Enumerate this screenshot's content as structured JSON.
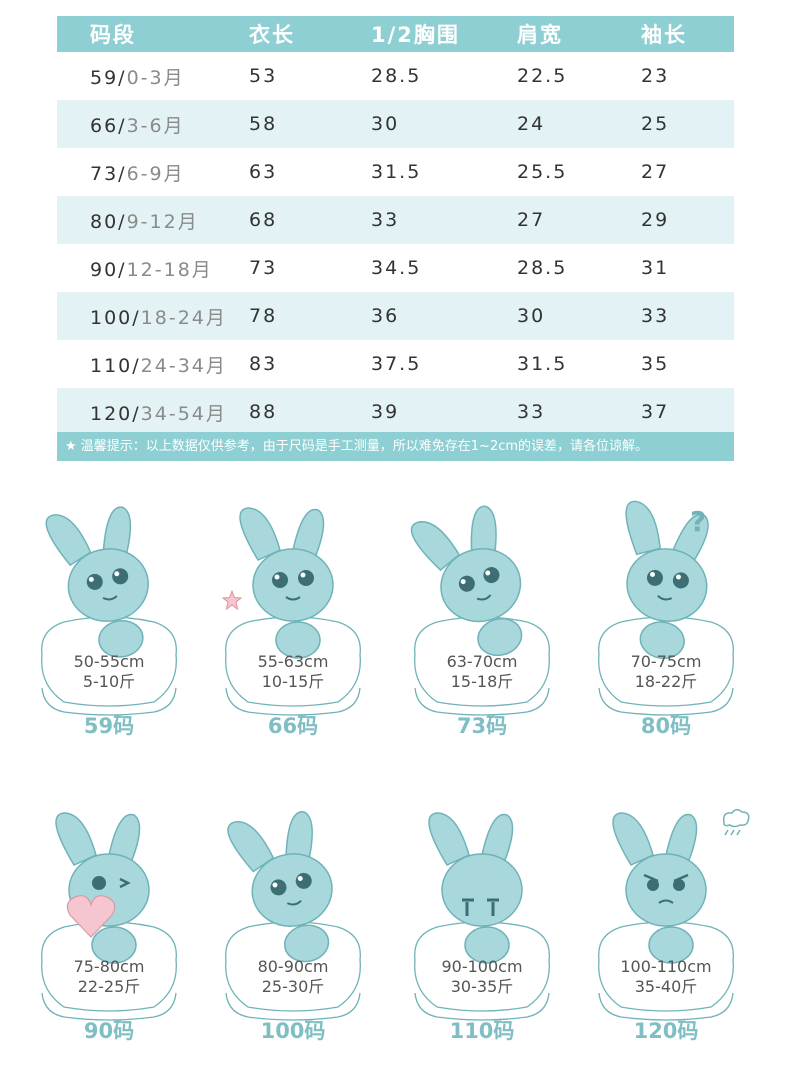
{
  "table": {
    "headers": [
      "码段",
      "衣长",
      "1/2胸围",
      "肩宽",
      "袖长"
    ],
    "rows": [
      {
        "size": "59/",
        "age": "0-3月",
        "length": "53",
        "chest": "28.5",
        "shoulder": "22.5",
        "sleeve": "23"
      },
      {
        "size": "66/",
        "age": "3-6月",
        "length": "58",
        "chest": "30",
        "shoulder": "24",
        "sleeve": "25"
      },
      {
        "size": "73/",
        "age": "6-9月",
        "length": "63",
        "chest": "31.5",
        "shoulder": "25.5",
        "sleeve": "27"
      },
      {
        "size": "80/",
        "age": "9-12月",
        "length": "68",
        "chest": "33",
        "shoulder": "27",
        "sleeve": "29"
      },
      {
        "size": "90/",
        "age": "12-18月",
        "length": "73",
        "chest": "34.5",
        "shoulder": "28.5",
        "sleeve": "31"
      },
      {
        "size": "100/",
        "age": "18-24月",
        "length": "78",
        "chest": "36",
        "shoulder": "30",
        "sleeve": "33"
      },
      {
        "size": "110/",
        "age": "24-34月",
        "length": "83",
        "chest": "37.5",
        "shoulder": "31.5",
        "sleeve": "35"
      },
      {
        "size": "120/",
        "age": "34-54月",
        "length": "88",
        "chest": "39",
        "shoulder": "33",
        "sleeve": "37"
      }
    ],
    "note": "★ 温馨提示：以上数据仅供参考，由于尺码是手工测量，所以难免存在1~2cm的误差，请各位谅解。"
  },
  "cards": [
    {
      "height": "50-55cm",
      "weight": "5-10斤",
      "code": "59码"
    },
    {
      "height": "55-63cm",
      "weight": "10-15斤",
      "code": "66码"
    },
    {
      "height": "63-70cm",
      "weight": "15-18斤",
      "code": "73码"
    },
    {
      "height": "70-75cm",
      "weight": "18-22斤",
      "code": "80码"
    },
    {
      "height": "75-80cm",
      "weight": "22-25斤",
      "code": "90码"
    },
    {
      "height": "80-90cm",
      "weight": "25-30斤",
      "code": "100码"
    },
    {
      "height": "90-100cm",
      "weight": "30-35斤",
      "code": "110码"
    },
    {
      "height": "100-110cm",
      "weight": "35-40斤",
      "code": "120码"
    }
  ],
  "extras": {
    "question_mark": "?"
  },
  "colors": {
    "header_bg": "#8ecfd3",
    "alt_row": "#e3f3f5",
    "bunny": "#a8d8dc",
    "outline": "#6fb3b8",
    "code_text": "#7fbfc4",
    "heart": "#f5c6cf"
  },
  "icons": [
    "bunny-mascot-icon",
    "star-wand-icon",
    "question-mark-icon",
    "heart-icon",
    "angry-steam-icon"
  ]
}
